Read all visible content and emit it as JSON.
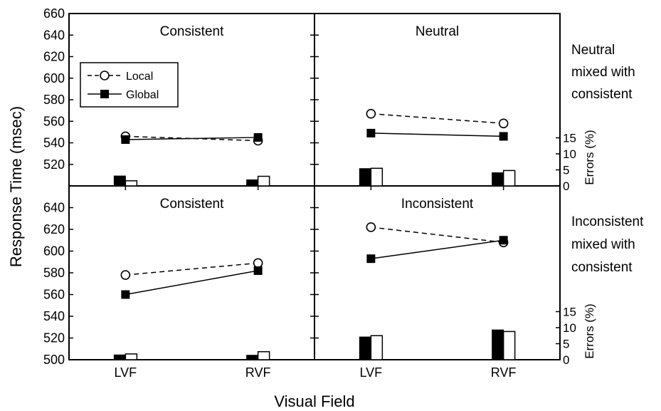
{
  "chart_data": {
    "type": "line",
    "xlabel": "Visual Field",
    "ylabel": "Response Time (msec)",
    "y2label": "Errors (%)",
    "categories": [
      "LVF",
      "RVF"
    ],
    "ylim_top": [
      500,
      660
    ],
    "ylim_bottom": [
      500,
      660
    ],
    "y_ticks_top": [
      "660",
      "640",
      "620",
      "600",
      "580",
      "560",
      "540",
      "520"
    ],
    "y_ticks_bottom": [
      "640",
      "620",
      "600",
      "580",
      "560",
      "540",
      "520",
      "500"
    ],
    "error_ylim": [
      0,
      15
    ],
    "error_ticks": [
      "15",
      "10",
      "5",
      "0"
    ],
    "legend": {
      "local_label": "Local",
      "global_label": "Global"
    },
    "side_labels": {
      "top": [
        "Neutral",
        "mixed with",
        "consistent"
      ],
      "bottom": [
        "Inconsistent",
        "mixed with",
        "consistent"
      ]
    },
    "panels": [
      {
        "title": "Consistent",
        "series": [
          {
            "name": "Local",
            "values": [
              546,
              542
            ]
          },
          {
            "name": "Global",
            "values": [
              543,
              545
            ]
          }
        ],
        "errors": {
          "Global": [
            3.1,
            1.9
          ],
          "Local": [
            1.6,
            3.0
          ]
        }
      },
      {
        "title": "Neutral",
        "series": [
          {
            "name": "Local",
            "values": [
              567,
              558
            ]
          },
          {
            "name": "Global",
            "values": [
              549,
              546
            ]
          }
        ],
        "errors": {
          "Global": [
            5.4,
            4.1
          ],
          "Local": [
            5.5,
            4.8
          ]
        }
      },
      {
        "title": "Consistent",
        "series": [
          {
            "name": "Local",
            "values": [
              578,
              589
            ]
          },
          {
            "name": "Global",
            "values": [
              560,
              582
            ]
          }
        ],
        "errors": {
          "Global": [
            1.5,
            1.4
          ],
          "Local": [
            1.8,
            2.5
          ]
        }
      },
      {
        "title": "Inconsistent",
        "series": [
          {
            "name": "Local",
            "values": [
              622,
              608
            ]
          },
          {
            "name": "Global",
            "values": [
              593,
              610
            ]
          }
        ],
        "errors": {
          "Global": [
            7.1,
            9.3
          ],
          "Local": [
            7.5,
            8.8
          ]
        }
      }
    ]
  }
}
